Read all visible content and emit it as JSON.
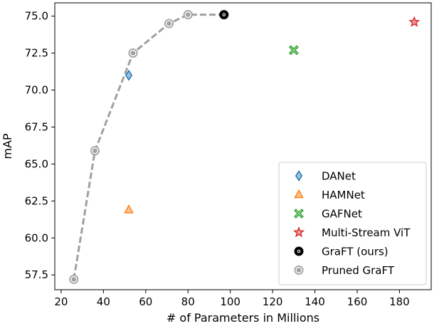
{
  "chart_data": {
    "type": "scatter",
    "xlabel": "# of Parameters in Millions",
    "ylabel": "mAP",
    "xlim": [
      17,
      195
    ],
    "ylim": [
      56.5,
      75.9
    ],
    "xticks": [
      20,
      40,
      60,
      80,
      100,
      120,
      140,
      160,
      180
    ],
    "yticks": [
      57.5,
      60.0,
      62.5,
      65.0,
      67.5,
      70.0,
      72.5,
      75.0
    ],
    "legend_position": "lower right",
    "series": [
      {
        "name": "DANet",
        "marker": "diamond",
        "color": "#1f77b4",
        "points": [
          {
            "x": 52,
            "y": 71.0
          }
        ]
      },
      {
        "name": "HAMNet",
        "marker": "triangle",
        "color": "#ff7f0e",
        "points": [
          {
            "x": 52,
            "y": 61.9
          }
        ]
      },
      {
        "name": "GAFNet",
        "marker": "x",
        "color": "#2ca02c",
        "points": [
          {
            "x": 130,
            "y": 72.7
          }
        ]
      },
      {
        "name": "Multi-Stream ViT",
        "marker": "star",
        "color": "#d62728",
        "points": [
          {
            "x": 187,
            "y": 74.6
          }
        ]
      },
      {
        "name": "GraFT (ours)",
        "marker": "octagon",
        "color": "#000000",
        "points": [
          {
            "x": 97,
            "y": 75.1
          }
        ]
      },
      {
        "name": "Pruned GraFT",
        "marker": "octagon",
        "color": "#a0a0a0",
        "line": "dashed",
        "points": [
          {
            "x": 26,
            "y": 57.2
          },
          {
            "x": 36,
            "y": 65.9
          },
          {
            "x": 54,
            "y": 72.5
          },
          {
            "x": 71,
            "y": 74.5
          },
          {
            "x": 80,
            "y": 75.1
          },
          {
            "x": 97,
            "y": 75.1
          }
        ]
      }
    ]
  }
}
